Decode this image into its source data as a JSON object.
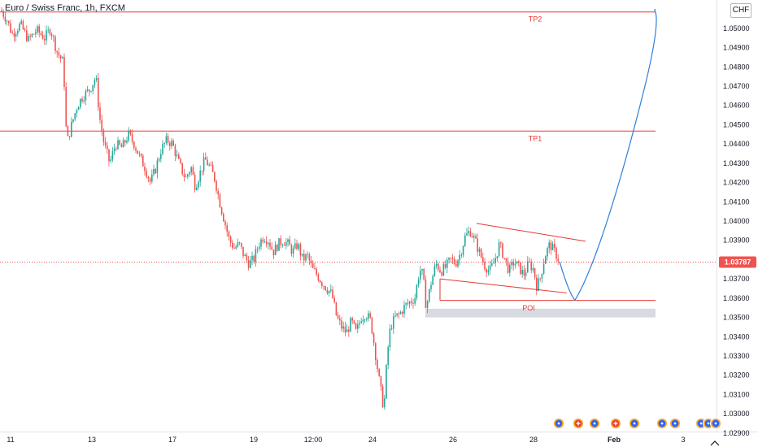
{
  "title": "Euro / Swiss Franc, 1h, FXCM",
  "currency": "CHF",
  "current_price_label": "1.03787",
  "chart_data": {
    "type": "candlestick",
    "symbol": "Euro / Swiss Franc",
    "timeframe": "1h",
    "source": "FXCM",
    "ylim": [
      1.02895,
      1.05105
    ],
    "y_ticks": [
      "1.05000",
      "1.04900",
      "1.04800",
      "1.04700",
      "1.04600",
      "1.04500",
      "1.04400",
      "1.04300",
      "1.04200",
      "1.04100",
      "1.04000",
      "1.03900",
      "1.03800",
      "1.03700",
      "1.03600",
      "1.03500",
      "1.03400",
      "1.03300",
      "1.03200",
      "1.03100",
      "1.03000",
      "1.02900"
    ],
    "x_ticks": [
      {
        "label": "11",
        "bold": false
      },
      {
        "label": "13",
        "bold": false
      },
      {
        "label": "17",
        "bold": false
      },
      {
        "label": "19",
        "bold": false
      },
      {
        "label": "12:00",
        "bold": false
      },
      {
        "label": "24",
        "bold": false
      },
      {
        "label": "26",
        "bold": false
      },
      {
        "label": "28",
        "bold": false
      },
      {
        "label": "Feb",
        "bold": true
      },
      {
        "label": "3",
        "bold": false
      }
    ],
    "price_path": [
      [
        0,
        1.051
      ],
      [
        8,
        1.0505
      ],
      [
        15,
        1.0497
      ],
      [
        25,
        1.0502
      ],
      [
        35,
        1.0494
      ],
      [
        45,
        1.0499
      ],
      [
        55,
        1.0495
      ],
      [
        62,
        1.05
      ],
      [
        70,
        1.0488
      ],
      [
        78,
        1.0482
      ],
      [
        82,
        1.044
      ],
      [
        88,
        1.045
      ],
      [
        95,
        1.046
      ],
      [
        102,
        1.0465
      ],
      [
        110,
        1.0468
      ],
      [
        118,
        1.0475
      ],
      [
        122,
        1.0455
      ],
      [
        128,
        1.044
      ],
      [
        135,
        1.043
      ],
      [
        142,
        1.044
      ],
      [
        150,
        1.0438
      ],
      [
        158,
        1.0445
      ],
      [
        165,
        1.044
      ],
      [
        172,
        1.0433
      ],
      [
        178,
        1.0428
      ],
      [
        185,
        1.042
      ],
      [
        192,
        1.0428
      ],
      [
        198,
        1.0437
      ],
      [
        205,
        1.0442
      ],
      [
        212,
        1.044
      ],
      [
        220,
        1.043
      ],
      [
        228,
        1.0422
      ],
      [
        235,
        1.0428
      ],
      [
        240,
        1.0418
      ],
      [
        246,
        1.0425
      ],
      [
        252,
        1.0432
      ],
      [
        258,
        1.0428
      ],
      [
        264,
        1.0422
      ],
      [
        270,
        1.041
      ],
      [
        276,
        1.04
      ],
      [
        282,
        1.039
      ],
      [
        288,
        1.0386
      ],
      [
        294,
        1.0388
      ],
      [
        300,
        1.0382
      ],
      [
        306,
        1.0378
      ],
      [
        312,
        1.038
      ],
      [
        318,
        1.0388
      ],
      [
        324,
        1.0392
      ],
      [
        330,
        1.039
      ],
      [
        336,
        1.0384
      ],
      [
        342,
        1.0388
      ],
      [
        348,
        1.039
      ],
      [
        354,
        1.0388
      ],
      [
        360,
        1.0384
      ],
      [
        366,
        1.0388
      ],
      [
        372,
        1.038
      ],
      [
        378,
        1.0382
      ],
      [
        384,
        1.0375
      ],
      [
        390,
        1.0372
      ],
      [
        396,
        1.0368
      ],
      [
        402,
        1.0365
      ],
      [
        408,
        1.0362
      ],
      [
        414,
        1.035
      ],
      [
        420,
        1.0345
      ],
      [
        426,
        1.0342
      ],
      [
        432,
        1.0348
      ],
      [
        438,
        1.0342
      ],
      [
        444,
        1.035
      ],
      [
        450,
        1.0352
      ],
      [
        456,
        1.0348
      ],
      [
        462,
        1.033
      ],
      [
        466,
        1.0318
      ],
      [
        472,
        1.0302
      ],
      [
        476,
        1.033
      ],
      [
        480,
        1.0345
      ],
      [
        486,
        1.035
      ],
      [
        492,
        1.0352
      ],
      [
        498,
        1.0356
      ],
      [
        504,
        1.0358
      ],
      [
        510,
        1.036
      ],
      [
        516,
        1.0375
      ],
      [
        520,
        1.0372
      ],
      [
        524,
        1.0355
      ],
      [
        530,
        1.0368
      ],
      [
        536,
        1.0378
      ],
      [
        542,
        1.0374
      ],
      [
        548,
        1.0376
      ],
      [
        554,
        1.038
      ],
      [
        560,
        1.0378
      ],
      [
        566,
        1.0383
      ],
      [
        572,
        1.0392
      ],
      [
        578,
        1.0395
      ],
      [
        584,
        1.039
      ],
      [
        590,
        1.0383
      ],
      [
        596,
        1.0377
      ],
      [
        602,
        1.0374
      ],
      [
        608,
        1.0379
      ],
      [
        614,
        1.0388
      ],
      [
        620,
        1.0381
      ],
      [
        626,
        1.0374
      ],
      [
        632,
        1.0379
      ],
      [
        638,
        1.0376
      ],
      [
        644,
        1.0372
      ],
      [
        650,
        1.0378
      ],
      [
        656,
        1.0375
      ],
      [
        660,
        1.0366
      ],
      [
        664,
        1.037
      ],
      [
        670,
        1.0382
      ],
      [
        676,
        1.0388
      ],
      [
        682,
        1.0384
      ],
      [
        688,
        1.0379
      ]
    ],
    "horizontal_levels": [
      {
        "label": "TP2",
        "price": 1.05085
      },
      {
        "label": "TP1",
        "price": 1.04467
      }
    ],
    "poi_zone": {
      "label": "POI",
      "price_top": 1.03545,
      "price_bottom": 1.035
    },
    "poi_line_price": 1.03588,
    "current_price": 1.03787,
    "channel": {
      "upper": [
        [
          586,
          1.03988
        ],
        [
          720,
          1.03895
        ]
      ],
      "lower": [
        [
          541,
          1.037
        ],
        [
          697,
          1.03627
        ]
      ]
    },
    "projection": [
      [
        688,
        1.0379
      ],
      [
        700,
        1.0362
      ],
      [
        707,
        1.0359
      ],
      [
        730,
        1.0375
      ],
      [
        760,
        1.0415
      ],
      [
        790,
        1.0465
      ],
      [
        806,
        1.051
      ]
    ],
    "event_icons": [
      {
        "type": "economic",
        "count": 3
      },
      {
        "type": "holiday",
        "count": 2
      },
      {
        "type": "economic",
        "count": 6
      }
    ]
  }
}
